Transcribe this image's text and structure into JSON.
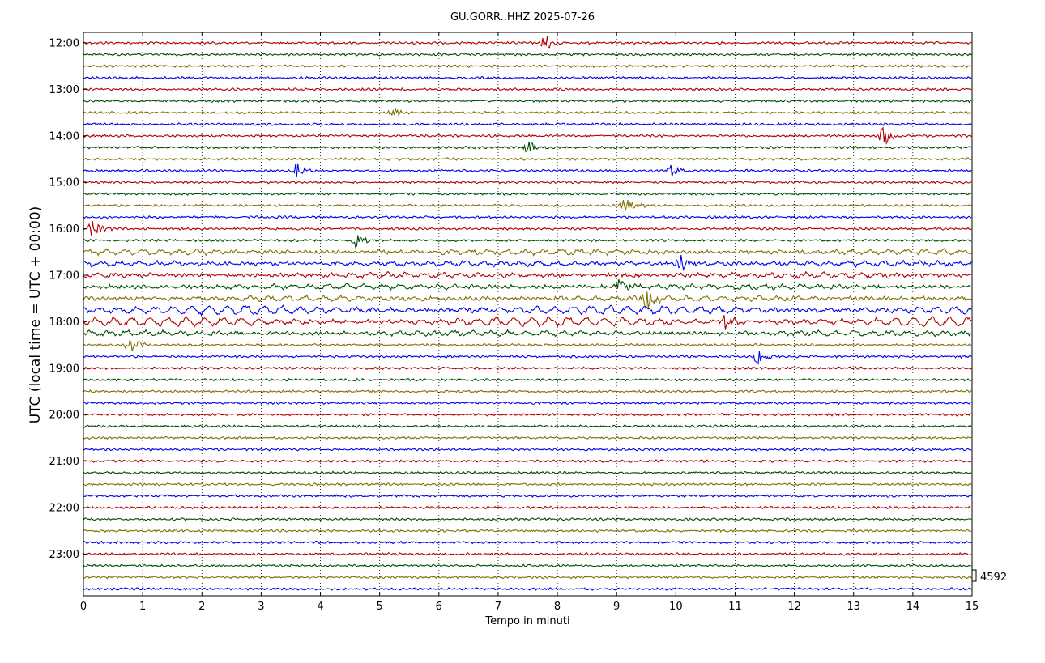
{
  "chart_data": {
    "type": "line",
    "title": "GU.GORR..HHZ 2025-07-26",
    "xlabel": "Tempo in minuti",
    "ylabel": "UTC (local time = UTC + 00:00)",
    "xlim": [
      0,
      15
    ],
    "x_ticks": [
      "0",
      "1",
      "2",
      "3",
      "4",
      "5",
      "6",
      "7",
      "8",
      "9",
      "10",
      "11",
      "12",
      "13",
      "14",
      "15"
    ],
    "y_ticks": [
      "12:00",
      "13:00",
      "14:00",
      "15:00",
      "16:00",
      "17:00",
      "18:00",
      "19:00",
      "20:00",
      "21:00",
      "22:00",
      "23:00"
    ],
    "scale_label": "4592",
    "row_minutes": 15,
    "first_row": "12:00",
    "row_count": 48,
    "trace_colors": [
      "#b00000",
      "#004d00",
      "#807000",
      "#0000ee"
    ],
    "grid": "vertical dotted at each minute",
    "events": [
      {
        "row_time": "12:00",
        "minute": 7.8,
        "amp": 11
      },
      {
        "row_time": "13:30",
        "minute": 5.2,
        "amp": 8
      },
      {
        "row_time": "14:00",
        "minute": 13.5,
        "amp": 14
      },
      {
        "row_time": "14:15",
        "minute": 7.5,
        "amp": 10
      },
      {
        "row_time": "14:45",
        "minute": 3.6,
        "amp": 13
      },
      {
        "row_time": "14:45",
        "minute": 9.9,
        "amp": 12
      },
      {
        "row_time": "15:30",
        "minute": 9.15,
        "amp": 16
      },
      {
        "row_time": "16:00",
        "minute": 0.15,
        "amp": 12
      },
      {
        "row_time": "16:15",
        "minute": 4.6,
        "amp": 12
      },
      {
        "row_time": "16:45",
        "minute": 10.1,
        "amp": 15
      },
      {
        "row_time": "17:15",
        "minute": 9.05,
        "amp": 13
      },
      {
        "row_time": "17:30",
        "minute": 9.5,
        "amp": 16
      },
      {
        "row_time": "18:00",
        "minute": 10.8,
        "amp": 14
      },
      {
        "row_time": "18:30",
        "minute": 0.8,
        "amp": 11
      },
      {
        "row_time": "18:45",
        "minute": 11.4,
        "amp": 12
      }
    ]
  }
}
